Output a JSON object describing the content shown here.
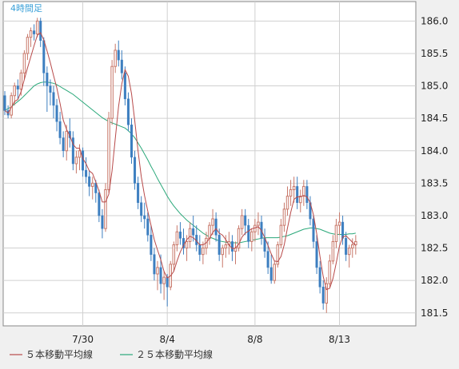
{
  "chart_data": {
    "type": "candlestick",
    "timeframe_label": "4時間足",
    "ylim": [
      181.3,
      186.3
    ],
    "y_ticks": [
      181.5,
      182.0,
      182.5,
      183.0,
      183.5,
      184.0,
      184.5,
      185.0,
      185.5,
      186.0
    ],
    "y_tick_labels": [
      "181.5",
      "182.0",
      "182.5",
      "183.0",
      "183.5",
      "184.0",
      "184.5",
      "185.0",
      "185.5",
      "186.0"
    ],
    "x_ticks": [
      {
        "label": "7/30",
        "index": 24
      },
      {
        "label": "8/4",
        "index": 50
      },
      {
        "label": "8/8",
        "index": 77
      },
      {
        "label": "8/13",
        "index": 103
      }
    ],
    "n_slots": 127,
    "colors": {
      "up": "#c8786a",
      "down": "#3d7fc0",
      "ma5": "#b84a4a",
      "ma25": "#2aa87a",
      "timeframe": "#3aa0d8",
      "grid": "#d0d0d0",
      "border": "#888888"
    },
    "series": [
      {
        "name": "candles",
        "ohlc": [
          [
            184.85,
            184.92,
            184.55,
            184.62
          ],
          [
            184.62,
            184.7,
            184.5,
            184.55
          ],
          [
            184.55,
            184.9,
            184.5,
            184.85
          ],
          [
            184.85,
            185.05,
            184.7,
            185.0
          ],
          [
            185.0,
            185.1,
            184.8,
            184.95
          ],
          [
            184.95,
            185.25,
            184.85,
            185.2
          ],
          [
            185.2,
            185.55,
            185.1,
            185.5
          ],
          [
            185.5,
            185.8,
            185.4,
            185.75
          ],
          [
            185.75,
            185.9,
            185.6,
            185.85
          ],
          [
            185.85,
            185.95,
            185.7,
            185.8
          ],
          [
            185.8,
            186.05,
            185.75,
            186.0
          ],
          [
            186.0,
            186.05,
            185.6,
            185.7
          ],
          [
            185.7,
            185.75,
            185.0,
            185.2
          ],
          [
            185.2,
            185.3,
            184.6,
            185.0
          ],
          [
            185.0,
            185.1,
            184.7,
            184.9
          ],
          [
            184.9,
            185.0,
            184.5,
            184.7
          ],
          [
            184.7,
            184.8,
            184.3,
            184.45
          ],
          [
            184.45,
            184.6,
            184.1,
            184.2
          ],
          [
            184.2,
            184.3,
            183.9,
            184.0
          ],
          [
            184.0,
            184.4,
            183.85,
            184.3
          ],
          [
            184.3,
            184.5,
            184.05,
            184.2
          ],
          [
            184.2,
            184.3,
            183.7,
            183.8
          ],
          [
            183.8,
            184.0,
            183.65,
            183.9
          ],
          [
            183.9,
            184.1,
            183.7,
            184.0
          ],
          [
            184.0,
            184.05,
            183.6,
            183.7
          ],
          [
            183.7,
            183.9,
            183.5,
            183.6
          ],
          [
            183.6,
            183.7,
            183.3,
            183.45
          ],
          [
            183.45,
            183.6,
            183.25,
            183.5
          ],
          [
            183.5,
            183.55,
            183.2,
            183.35
          ],
          [
            183.35,
            183.4,
            182.9,
            183.0
          ],
          [
            183.0,
            183.1,
            182.65,
            182.8
          ],
          [
            182.8,
            183.5,
            182.75,
            183.4
          ],
          [
            183.4,
            184.6,
            183.35,
            184.5
          ],
          [
            184.5,
            185.4,
            184.4,
            185.3
          ],
          [
            185.3,
            185.65,
            185.2,
            185.55
          ],
          [
            185.55,
            185.7,
            185.3,
            185.4
          ],
          [
            185.4,
            185.55,
            185.1,
            185.2
          ],
          [
            185.2,
            185.3,
            184.7,
            184.8
          ],
          [
            184.8,
            184.9,
            184.3,
            184.4
          ],
          [
            184.4,
            184.5,
            183.8,
            183.9
          ],
          [
            183.9,
            184.0,
            183.4,
            183.5
          ],
          [
            183.5,
            183.6,
            183.1,
            183.2
          ],
          [
            183.2,
            183.3,
            182.9,
            183.0
          ],
          [
            183.0,
            183.2,
            182.8,
            182.95
          ],
          [
            182.95,
            183.05,
            182.6,
            182.7
          ],
          [
            182.7,
            182.85,
            182.3,
            182.4
          ],
          [
            182.4,
            182.5,
            182.0,
            182.1
          ],
          [
            182.1,
            182.3,
            181.85,
            182.2
          ],
          [
            182.2,
            182.4,
            181.8,
            181.95
          ],
          [
            181.95,
            182.15,
            181.7,
            182.05
          ],
          [
            182.05,
            182.1,
            181.6,
            181.9
          ],
          [
            181.9,
            182.3,
            181.85,
            182.25
          ],
          [
            182.25,
            182.6,
            182.15,
            182.55
          ],
          [
            182.55,
            182.85,
            182.45,
            182.75
          ],
          [
            182.75,
            182.9,
            182.55,
            182.65
          ],
          [
            182.65,
            182.8,
            182.4,
            182.5
          ],
          [
            182.5,
            182.7,
            182.3,
            182.6
          ],
          [
            182.6,
            182.9,
            182.5,
            182.8
          ],
          [
            182.8,
            183.0,
            182.6,
            182.7
          ],
          [
            182.7,
            182.85,
            182.45,
            182.55
          ],
          [
            182.55,
            182.7,
            182.3,
            182.4
          ],
          [
            182.4,
            182.6,
            182.25,
            182.5
          ],
          [
            182.5,
            182.75,
            182.4,
            182.65
          ],
          [
            182.65,
            182.9,
            182.55,
            182.85
          ],
          [
            182.85,
            183.1,
            182.7,
            182.95
          ],
          [
            182.95,
            183.05,
            182.6,
            182.7
          ],
          [
            182.7,
            182.8,
            182.3,
            182.4
          ],
          [
            182.4,
            182.55,
            182.2,
            182.5
          ],
          [
            182.5,
            182.7,
            182.35,
            182.55
          ],
          [
            182.55,
            182.75,
            182.4,
            182.6
          ],
          [
            182.6,
            182.7,
            182.3,
            182.45
          ],
          [
            182.45,
            182.6,
            182.25,
            182.5
          ],
          [
            182.5,
            182.85,
            182.45,
            182.8
          ],
          [
            182.8,
            183.1,
            182.7,
            183.0
          ],
          [
            183.0,
            183.1,
            182.7,
            182.85
          ],
          [
            182.85,
            182.95,
            182.5,
            182.6
          ],
          [
            182.6,
            182.8,
            182.45,
            182.75
          ],
          [
            182.75,
            182.95,
            182.6,
            182.85
          ],
          [
            182.85,
            183.05,
            182.7,
            182.9
          ],
          [
            182.9,
            183.0,
            182.55,
            182.65
          ],
          [
            182.65,
            182.8,
            182.35,
            182.45
          ],
          [
            182.45,
            182.6,
            182.1,
            182.2
          ],
          [
            182.2,
            182.4,
            181.95,
            182.0
          ],
          [
            182.0,
            182.3,
            181.95,
            182.25
          ],
          [
            182.25,
            182.6,
            182.2,
            182.55
          ],
          [
            182.55,
            182.95,
            182.5,
            182.85
          ],
          [
            182.85,
            183.2,
            182.75,
            183.1
          ],
          [
            183.1,
            183.45,
            183.0,
            183.3
          ],
          [
            183.3,
            183.55,
            183.15,
            183.4
          ],
          [
            183.4,
            183.6,
            183.2,
            183.45
          ],
          [
            183.45,
            183.6,
            183.1,
            183.2
          ],
          [
            183.2,
            183.4,
            183.05,
            183.3
          ],
          [
            183.3,
            183.55,
            183.15,
            183.45
          ],
          [
            183.45,
            183.55,
            183.1,
            183.2
          ],
          [
            183.2,
            183.3,
            182.85,
            182.95
          ],
          [
            182.95,
            183.0,
            182.5,
            182.6
          ],
          [
            182.6,
            182.7,
            182.1,
            182.2
          ],
          [
            182.2,
            182.3,
            181.8,
            181.9
          ],
          [
            181.9,
            182.0,
            181.55,
            181.65
          ],
          [
            181.65,
            182.05,
            181.5,
            181.95
          ],
          [
            181.95,
            182.4,
            181.9,
            182.3
          ],
          [
            182.3,
            182.7,
            182.25,
            182.6
          ],
          [
            182.6,
            182.95,
            182.5,
            182.85
          ],
          [
            182.85,
            183.05,
            182.7,
            182.9
          ],
          [
            182.9,
            183.0,
            182.55,
            182.65
          ],
          [
            182.65,
            182.75,
            182.3,
            182.4
          ],
          [
            182.4,
            182.55,
            182.2,
            182.5
          ],
          [
            182.5,
            182.65,
            182.35,
            182.55
          ],
          [
            182.55,
            182.7,
            182.4,
            182.6
          ]
        ]
      },
      {
        "name": "５本移動平均線",
        "values": [
          184.62,
          184.58,
          184.67,
          184.76,
          184.79,
          184.91,
          185.1,
          185.28,
          185.45,
          185.62,
          185.78,
          185.82,
          185.71,
          185.54,
          185.36,
          185.16,
          184.97,
          184.73,
          184.47,
          184.33,
          184.23,
          184.1,
          184.04,
          184.04,
          183.88,
          183.8,
          183.69,
          183.65,
          183.52,
          183.38,
          183.21,
          183.21,
          183.33,
          183.69,
          184.19,
          184.68,
          185.03,
          185.25,
          185.15,
          184.88,
          184.46,
          184.0,
          183.6,
          183.31,
          183.07,
          182.85,
          182.63,
          182.47,
          182.32,
          182.14,
          182.04,
          182.07,
          182.14,
          182.3,
          182.44,
          182.54,
          182.63,
          182.68,
          182.66,
          182.61,
          182.55,
          182.55,
          182.58,
          182.65,
          182.74,
          182.8,
          182.73,
          182.7,
          182.63,
          182.55,
          182.49,
          182.5,
          182.56,
          182.67,
          182.73,
          182.76,
          182.8,
          182.81,
          182.83,
          182.77,
          182.66,
          182.54,
          182.41,
          182.3,
          182.29,
          182.37,
          182.55,
          182.81,
          183.05,
          183.25,
          183.29,
          183.29,
          183.31,
          183.29,
          183.2,
          183.01,
          182.72,
          182.37,
          182.06,
          181.86,
          181.88,
          182.03,
          182.27,
          182.53,
          182.67,
          182.69,
          182.64,
          182.59,
          182.54
        ]
      },
      {
        "name": "２５本移動平均線",
        "values": [
          184.62,
          184.65,
          184.68,
          184.72,
          184.76,
          184.8,
          184.85,
          184.9,
          184.95,
          185.0,
          185.03,
          185.05,
          185.06,
          185.06,
          185.05,
          185.04,
          185.02,
          184.99,
          184.96,
          184.93,
          184.9,
          184.87,
          184.83,
          184.79,
          184.75,
          184.71,
          184.67,
          184.63,
          184.59,
          184.55,
          184.51,
          184.48,
          184.45,
          184.43,
          184.41,
          184.39,
          184.37,
          184.35,
          184.31,
          184.26,
          184.2,
          184.12,
          184.04,
          183.95,
          183.86,
          183.76,
          183.67,
          183.57,
          183.48,
          183.39,
          183.3,
          183.22,
          183.15,
          183.09,
          183.03,
          182.98,
          182.93,
          182.89,
          182.85,
          182.81,
          182.77,
          182.73,
          182.7,
          182.67,
          182.65,
          182.63,
          182.61,
          182.6,
          182.59,
          182.58,
          182.58,
          182.58,
          182.58,
          182.59,
          182.6,
          182.61,
          182.62,
          182.63,
          182.64,
          182.65,
          182.66,
          182.66,
          182.66,
          182.66,
          182.66,
          182.67,
          182.68,
          182.69,
          182.71,
          182.73,
          182.75,
          182.77,
          182.79,
          182.8,
          182.81,
          182.81,
          182.8,
          182.79,
          182.77,
          182.75,
          182.73,
          182.72,
          182.71,
          182.71,
          182.71,
          182.71,
          182.72,
          182.72,
          182.73
        ]
      }
    ],
    "legend": [
      {
        "label": "５本移動平均線",
        "color": "#b84a4a"
      },
      {
        "label": "２５本移動平均線",
        "color": "#2aa87a"
      }
    ]
  }
}
